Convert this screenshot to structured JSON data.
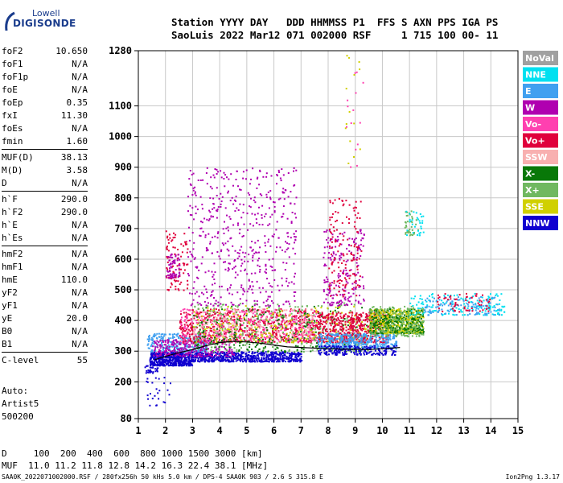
{
  "logo": {
    "line1": "Lowell",
    "line2": "DIGISONDE"
  },
  "header": {
    "line1": "Station YYYY DAY   DDD HHMMSS P1  FFS S AXN PPS IGA PS",
    "line2": "SaoLuis 2022 Mar12 071 002000 RSF     1 715 100 00- 11"
  },
  "params": {
    "group1": [
      {
        "k": "foF2",
        "v": "10.650"
      },
      {
        "k": "foF1",
        "v": "N/A"
      },
      {
        "k": "foF1p",
        "v": "N/A"
      },
      {
        "k": "foE",
        "v": "N/A"
      },
      {
        "k": "foEp",
        "v": "0.35"
      },
      {
        "k": "fxI",
        "v": "11.30"
      },
      {
        "k": "foEs",
        "v": "N/A"
      },
      {
        "k": "fmin",
        "v": "1.60"
      }
    ],
    "group2": [
      {
        "k": "MUF(D)",
        "v": "38.13"
      },
      {
        "k": "M(D)",
        "v": "3.58"
      },
      {
        "k": "D",
        "v": "N/A"
      }
    ],
    "group3": [
      {
        "k": "h`F",
        "v": "290.0"
      },
      {
        "k": "h`F2",
        "v": "290.0"
      },
      {
        "k": "h`E",
        "v": "N/A"
      },
      {
        "k": "h`Es",
        "v": "N/A"
      }
    ],
    "group4": [
      {
        "k": "hmF2",
        "v": "N/A"
      },
      {
        "k": "hmF1",
        "v": "N/A"
      },
      {
        "k": "hmE",
        "v": "110.0"
      },
      {
        "k": "yF2",
        "v": "N/A"
      },
      {
        "k": "yF1",
        "v": "N/A"
      },
      {
        "k": "yE",
        "v": "20.0"
      },
      {
        "k": "B0",
        "v": "N/A"
      },
      {
        "k": "B1",
        "v": "N/A"
      }
    ],
    "clevel": {
      "k": "C-level",
      "v": "55"
    }
  },
  "auto": {
    "line1": "Auto:",
    "line2": "Artist5",
    "line3": "500200"
  },
  "bottom": {
    "line1": "D     100  200  400  600  800 1000 1500 3000 [km]",
    "line2": "MUF  11.0 11.2 11.8 12.8 14.2 16.3 22.4 38.1 [MHz]"
  },
  "footer": "SAA0K_2022071002000.RSF / 280fx256h 50 kHs 5.0 km / DPS-4 SAA0K 903 / 2.6 S 315.8 E",
  "version": "Ion2Png 1.3.17",
  "legend": [
    {
      "label": "NoVal",
      "color": "#a0a0a0"
    },
    {
      "label": "NNE",
      "color": "#00e0f0"
    },
    {
      "label": "E",
      "color": "#40a0f0"
    },
    {
      "label": "W",
      "color": "#b000b0"
    },
    {
      "label": "Vo-",
      "color": "#ff40b0"
    },
    {
      "label": "Vo+",
      "color": "#e0003c"
    },
    {
      "label": "SSW",
      "color": "#f8b0b0"
    },
    {
      "label": "X-",
      "color": "#087808"
    },
    {
      "label": "X+",
      "color": "#70b860"
    },
    {
      "label": "SSE",
      "color": "#d0d000"
    },
    {
      "label": "NNW",
      "color": "#1000d0"
    }
  ],
  "chart_data": {
    "type": "scatter",
    "xlim": [
      1,
      15
    ],
    "ylim": [
      80,
      1280
    ],
    "x_ticks": [
      1,
      2,
      3,
      4,
      5,
      6,
      7,
      8,
      9,
      10,
      11,
      12,
      13,
      14,
      15
    ],
    "y_ticks": [
      80,
      200,
      300,
      400,
      500,
      600,
      700,
      800,
      900,
      1000,
      1100,
      1280
    ],
    "grid": true,
    "legend_position": "right",
    "trace": {
      "color": "#000000",
      "x": [
        1.6,
        2.0,
        2.5,
        3.0,
        3.5,
        4.0,
        4.5,
        5.0,
        5.5,
        6.0,
        6.5,
        7.0,
        7.5,
        8.0,
        8.5,
        9.0,
        9.5,
        10.0,
        10.65
      ],
      "y": [
        272,
        283,
        295,
        305,
        318,
        328,
        332,
        330,
        326,
        320,
        314,
        312,
        310,
        308,
        307,
        306,
        305,
        308,
        312
      ]
    },
    "regions": [
      {
        "series": "NNW",
        "x": [
          1.4,
          3.0
        ],
        "y": [
          255,
          300
        ],
        "n": 520
      },
      {
        "series": "NNW",
        "x": [
          3.0,
          7.0
        ],
        "y": [
          268,
          300
        ],
        "n": 600
      },
      {
        "series": "E",
        "x": [
          1.3,
          3.5
        ],
        "y": [
          300,
          360
        ],
        "n": 260
      },
      {
        "series": "W",
        "x": [
          1.5,
          4.5
        ],
        "y": [
          285,
          340
        ],
        "n": 260
      },
      {
        "series": "Vo+",
        "x": [
          2.5,
          7.6
        ],
        "y": [
          330,
          440
        ],
        "n": 700
      },
      {
        "series": "Vo-",
        "x": [
          2.5,
          7.6
        ],
        "y": [
          330,
          440
        ],
        "n": 350
      },
      {
        "series": "SSW",
        "x": [
          3.0,
          7.5
        ],
        "y": [
          340,
          440
        ],
        "n": 250
      },
      {
        "series": "X+",
        "x": [
          3.0,
          9.5
        ],
        "y": [
          300,
          460
        ],
        "n": 300
      },
      {
        "series": "X-",
        "x": [
          3.0,
          9.5
        ],
        "y": [
          300,
          450
        ],
        "n": 220
      },
      {
        "series": "SSE",
        "x": [
          3.0,
          9.5
        ],
        "y": [
          330,
          450
        ],
        "n": 200
      },
      {
        "series": "W",
        "x": [
          2.8,
          6.8
        ],
        "y": [
          450,
          900
        ],
        "n": 520
      },
      {
        "series": "Vo+",
        "x": [
          2.0,
          2.8
        ],
        "y": [
          500,
          700
        ],
        "n": 90
      },
      {
        "series": "W",
        "x": [
          2.0,
          2.5
        ],
        "y": [
          540,
          620
        ],
        "n": 60
      },
      {
        "series": "Vo+",
        "x": [
          7.6,
          10.2
        ],
        "y": [
          330,
          430
        ],
        "n": 550
      },
      {
        "series": "E",
        "x": [
          7.6,
          10.5
        ],
        "y": [
          310,
          360
        ],
        "n": 380
      },
      {
        "series": "NNW",
        "x": [
          7.6,
          10.5
        ],
        "y": [
          290,
          320
        ],
        "n": 200
      },
      {
        "series": "SSE",
        "x": [
          9.5,
          11.5
        ],
        "y": [
          360,
          440
        ],
        "n": 500
      },
      {
        "series": "X-",
        "x": [
          9.5,
          11.5
        ],
        "y": [
          360,
          440
        ],
        "n": 280
      },
      {
        "series": "X+",
        "x": [
          9.5,
          11.5
        ],
        "y": [
          350,
          450
        ],
        "n": 220
      },
      {
        "series": "NNE",
        "x": [
          11.0,
          14.5
        ],
        "y": [
          420,
          490
        ],
        "n": 160
      },
      {
        "series": "E",
        "x": [
          11.5,
          14.3
        ],
        "y": [
          420,
          480
        ],
        "n": 110
      },
      {
        "series": "Vo+",
        "x": [
          12.0,
          14.0
        ],
        "y": [
          430,
          490
        ],
        "n": 60
      },
      {
        "series": "W",
        "x": [
          7.8,
          9.3
        ],
        "y": [
          450,
          700
        ],
        "n": 200
      },
      {
        "series": "Vo+",
        "x": [
          8.0,
          9.2
        ],
        "y": [
          480,
          800
        ],
        "n": 140
      },
      {
        "series": "X+",
        "x": [
          10.8,
          11.3
        ],
        "y": [
          680,
          760
        ],
        "n": 40
      },
      {
        "series": "NNE",
        "x": [
          10.8,
          11.5
        ],
        "y": [
          680,
          760
        ],
        "n": 30
      },
      {
        "series": "SSE",
        "x": [
          8.6,
          9.3
        ],
        "y": [
          900,
          1280
        ],
        "n": 14
      },
      {
        "series": "Vo-",
        "x": [
          8.4,
          9.4
        ],
        "y": [
          900,
          1250
        ],
        "n": 14
      },
      {
        "series": "NNW",
        "x": [
          1.2,
          2.2
        ],
        "y": [
          120,
          220
        ],
        "n": 25
      },
      {
        "series": "NNW",
        "x": [
          1.2,
          1.7
        ],
        "y": [
          230,
          260
        ],
        "n": 30
      }
    ]
  }
}
